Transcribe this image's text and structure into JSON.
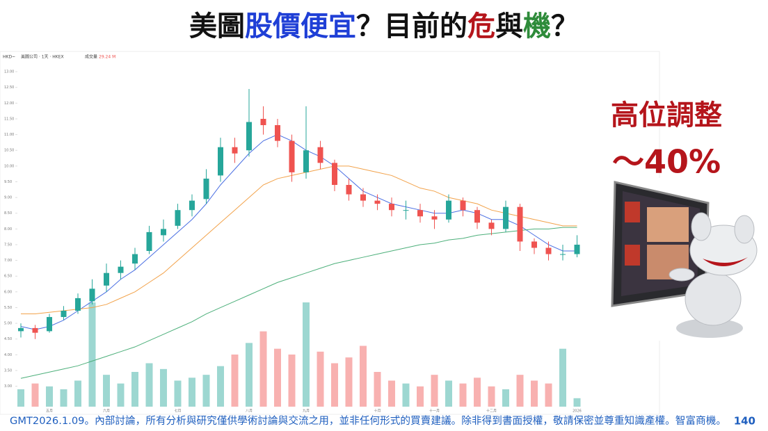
{
  "slide": {
    "title_parts": [
      {
        "text": "美圖",
        "color": "#111111"
      },
      {
        "text": "股價便宜",
        "color": "#1f3fd6"
      },
      {
        "text": "？目前的",
        "color": "#111111"
      },
      {
        "text": "危",
        "color": "#b5151b"
      },
      {
        "text": "與",
        "color": "#111111"
      },
      {
        "text": "機",
        "color": "#2e8b3a"
      },
      {
        "text": "？",
        "color": "#111111"
      }
    ],
    "callout": [
      "高位調整",
      "～40%"
    ],
    "footer": "GMT2026.1.09。內部討論，所有分析與研究僅供學術討論與交流之用，並非任何形式的買賣建議。除非得到書面授權，敬請保密並尊重知識產權。智富商機。",
    "page": "140"
  },
  "chart_data": {
    "type": "candlestick",
    "currency": "HKD~",
    "symbol": "美圖公司 · 1天 · HKEX",
    "volume_name": "成交量",
    "volume_last": "29.24 M",
    "categories": [
      null,
      null,
      "五月",
      null,
      null,
      null,
      "六月",
      null,
      null,
      null,
      null,
      "七月",
      null,
      null,
      null,
      null,
      "八月",
      null,
      null,
      null,
      "九月",
      null,
      null,
      null,
      null,
      "十月",
      null,
      null,
      null,
      "十一月",
      null,
      null,
      null,
      "十二月",
      null,
      null,
      null,
      null,
      null,
      "2026"
    ],
    "open": [
      4.75,
      4.85,
      4.75,
      5.2,
      5.4,
      5.7,
      6.2,
      6.6,
      6.9,
      7.3,
      7.8,
      8.1,
      8.6,
      8.95,
      9.7,
      10.6,
      10.5,
      11.5,
      11.3,
      10.8,
      9.8,
      10.6,
      10.1,
      9.4,
      9.1,
      8.9,
      8.8,
      8.6,
      8.6,
      8.4,
      8.3,
      8.9,
      8.6,
      8.2,
      8.0,
      8.7,
      7.6,
      7.4,
      7.2,
      7.2
    ],
    "high": [
      5.0,
      4.95,
      5.3,
      5.55,
      5.95,
      6.4,
      6.9,
      7.0,
      7.4,
      8.1,
      8.3,
      8.8,
      9.1,
      9.9,
      10.9,
      10.9,
      12.45,
      11.9,
      11.5,
      11.0,
      11.9,
      10.8,
      10.2,
      9.6,
      9.3,
      9.1,
      9.0,
      8.9,
      8.8,
      8.6,
      9.1,
      9.0,
      8.7,
      8.3,
      8.9,
      8.8,
      7.7,
      7.6,
      7.5,
      7.8
    ],
    "low": [
      4.55,
      4.5,
      4.7,
      5.1,
      5.3,
      5.6,
      6.0,
      6.4,
      6.7,
      7.2,
      7.6,
      8.0,
      8.4,
      8.8,
      9.5,
      10.1,
      10.3,
      11.0,
      10.6,
      9.5,
      9.6,
      9.9,
      9.2,
      8.9,
      8.7,
      8.6,
      8.4,
      8.3,
      8.2,
      8.0,
      8.2,
      8.4,
      8.0,
      7.8,
      7.9,
      7.3,
      7.2,
      7.0,
      7.0,
      7.1
    ],
    "close": [
      4.85,
      4.7,
      5.2,
      5.4,
      5.8,
      6.1,
      6.6,
      6.8,
      7.2,
      7.9,
      8.0,
      8.6,
      8.9,
      9.6,
      10.6,
      10.4,
      11.4,
      11.3,
      10.8,
      9.8,
      10.5,
      10.1,
      9.4,
      9.1,
      8.9,
      8.8,
      8.6,
      8.6,
      8.4,
      8.3,
      8.9,
      8.6,
      8.2,
      8.0,
      8.7,
      7.6,
      7.4,
      7.2,
      7.2,
      7.5
    ],
    "volume": [
      60,
      80,
      70,
      60,
      90,
      360,
      110,
      80,
      120,
      150,
      130,
      90,
      100,
      110,
      140,
      180,
      220,
      260,
      200,
      180,
      360,
      190,
      150,
      170,
      210,
      120,
      90,
      80,
      70,
      110,
      90,
      80,
      100,
      70,
      60,
      110,
      90,
      80,
      200,
      29.24
    ],
    "up_color": "#26a69a",
    "down_color": "#ef5350",
    "series": [
      {
        "color": "#4a6fe3",
        "values": [
          4.9,
          4.8,
          4.9,
          5.1,
          5.4,
          5.7,
          6.0,
          6.4,
          6.7,
          7.1,
          7.5,
          7.9,
          8.3,
          8.8,
          9.4,
          9.9,
          10.4,
          10.8,
          11.0,
          10.8,
          10.5,
          10.3,
          10.0,
          9.6,
          9.2,
          9.0,
          8.8,
          8.7,
          8.6,
          8.5,
          8.5,
          8.6,
          8.5,
          8.3,
          8.3,
          8.1,
          7.8,
          7.5,
          7.3,
          7.3
        ]
      },
      {
        "color": "#f2a24a",
        "values": [
          5.3,
          5.3,
          5.35,
          5.4,
          5.45,
          5.5,
          5.6,
          5.8,
          6.0,
          6.3,
          6.6,
          7.0,
          7.4,
          7.8,
          8.2,
          8.6,
          9.0,
          9.4,
          9.6,
          9.7,
          9.8,
          9.9,
          10.0,
          10.0,
          9.9,
          9.8,
          9.7,
          9.5,
          9.3,
          9.2,
          9.0,
          8.9,
          8.8,
          8.6,
          8.5,
          8.4,
          8.3,
          8.2,
          8.1,
          8.1
        ]
      },
      {
        "color": "#4caf7a",
        "values": [
          3.25,
          3.35,
          3.45,
          3.55,
          3.65,
          3.8,
          3.95,
          4.1,
          4.25,
          4.45,
          4.65,
          4.85,
          5.05,
          5.3,
          5.5,
          5.7,
          5.9,
          6.1,
          6.3,
          6.45,
          6.6,
          6.75,
          6.9,
          7.0,
          7.1,
          7.2,
          7.3,
          7.4,
          7.5,
          7.55,
          7.65,
          7.7,
          7.8,
          7.85,
          7.9,
          7.95,
          8.0,
          8.0,
          8.05,
          8.05
        ]
      }
    ],
    "ylim": [
      2.35,
      13.4
    ],
    "yticks": [
      {
        "value": 3,
        "label": "3.00"
      },
      {
        "value": 3.5,
        "label": "3.50"
      },
      {
        "value": 4,
        "label": "4.00"
      },
      {
        "value": 4.5,
        "label": "4.50"
      },
      {
        "value": 5,
        "label": "5.00"
      },
      {
        "value": 5.5,
        "label": "5.50"
      },
      {
        "value": 6,
        "label": "6.00"
      },
      {
        "value": 6.5,
        "label": "6.50"
      },
      {
        "value": 7,
        "label": "7.00"
      },
      {
        "value": 7.5,
        "label": "7.50"
      },
      {
        "value": 8,
        "label": "8.00"
      },
      {
        "value": 8.5,
        "label": "8.50"
      },
      {
        "value": 9,
        "label": "9.00"
      },
      {
        "value": 9.5,
        "label": "9.50"
      },
      {
        "value": 10,
        "label": "10.00"
      },
      {
        "value": 10.5,
        "label": "10.50"
      },
      {
        "value": 11,
        "label": "11.00"
      },
      {
        "value": 11.5,
        "label": "11.50"
      },
      {
        "value": 12,
        "label": "12.00"
      },
      {
        "value": 12.5,
        "label": "12.50"
      },
      {
        "value": 13,
        "label": "13.00"
      }
    ],
    "y2lim": [
      0,
      1200
    ],
    "grid": false
  }
}
